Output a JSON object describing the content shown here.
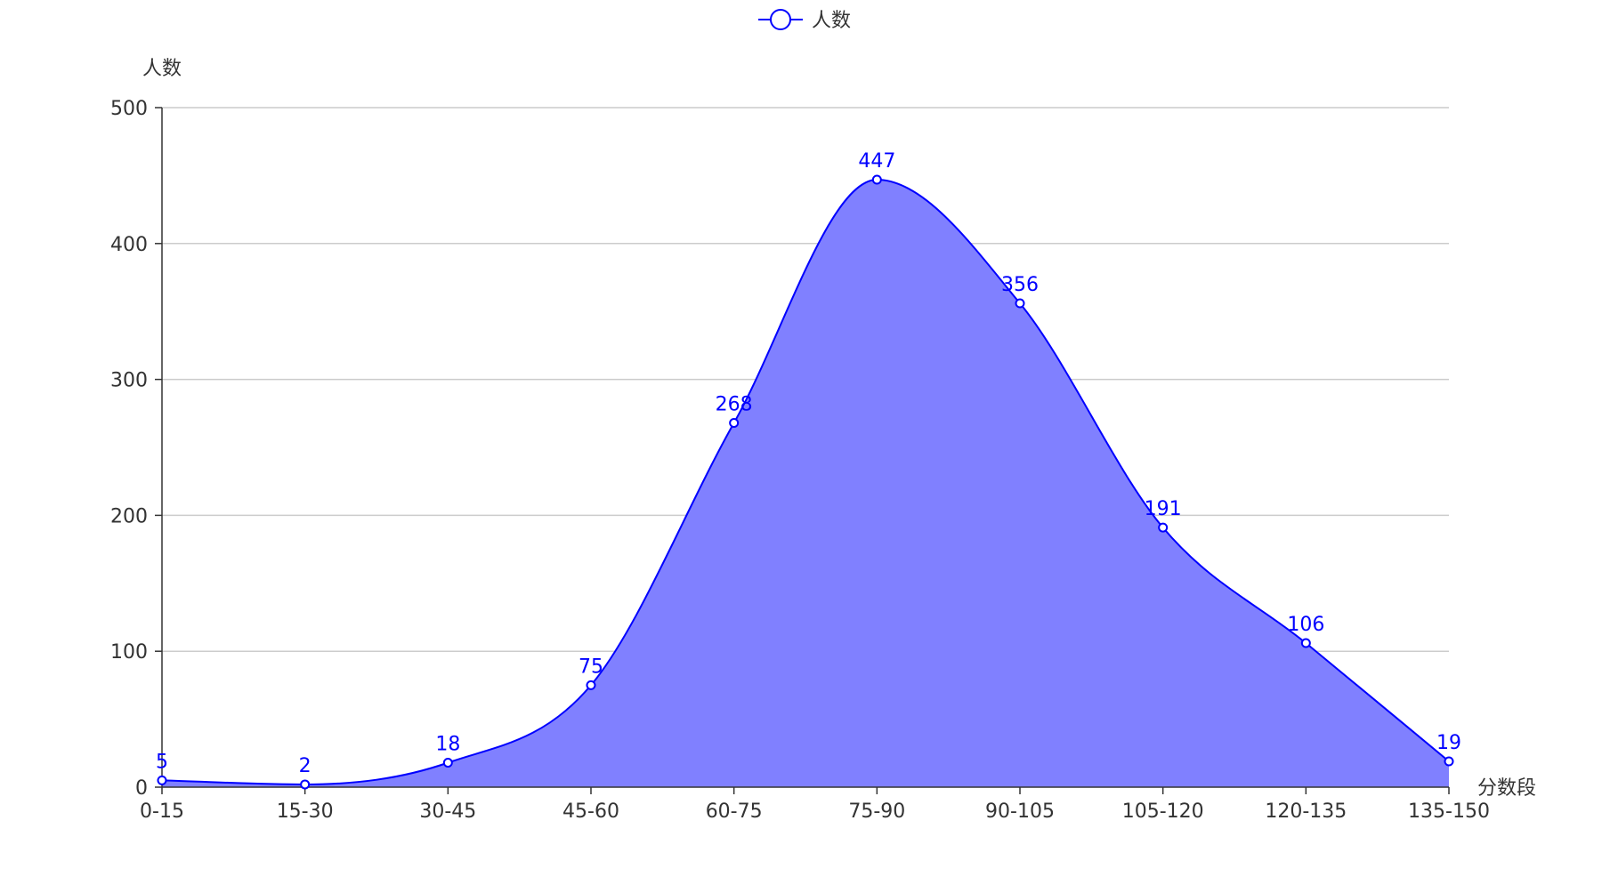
{
  "chart_data": {
    "type": "area",
    "smooth": true,
    "legend": {
      "position": "top-center",
      "entries": [
        "人数"
      ]
    },
    "xlabel": "分数段",
    "ylabel": "人数",
    "categories": [
      "0-15",
      "15-30",
      "30-45",
      "45-60",
      "60-75",
      "75-90",
      "90-105",
      "105-120",
      "120-135",
      "135-150"
    ],
    "series": [
      {
        "name": "人数",
        "values": [
          5,
          2,
          18,
          75,
          268,
          447,
          356,
          191,
          106,
          19
        ]
      }
    ],
    "ylim": [
      0,
      500
    ],
    "yticks": [
      "0",
      "100",
      "200",
      "300",
      "400",
      "500"
    ],
    "grid": true,
    "colors": {
      "line": "#0000ff",
      "fill": "#8080ff",
      "grid": "#cccccc",
      "axis": "#333333",
      "label": "#0000ff"
    }
  }
}
